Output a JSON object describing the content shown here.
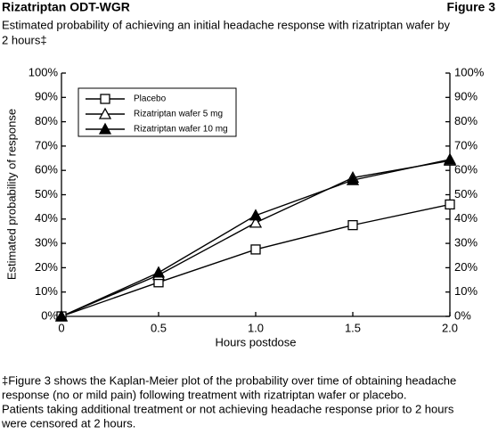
{
  "header": {
    "title": "Rizatriptan ODT-WGR",
    "figure": "Figure 3",
    "subtitle_lines": [
      "Estimated probability of achieving an initial headache response with rizatriptan wafer by",
      "2 hours‡"
    ]
  },
  "chart_data": {
    "type": "line",
    "xlabel": "Hours postdose",
    "ylabel": "Estimated probability of response",
    "x": [
      0,
      0.5,
      1.0,
      1.5,
      2.0
    ],
    "series": [
      {
        "name": "Placebo",
        "color": "#000000",
        "marker": "open-square",
        "values": [
          0,
          14,
          27.5,
          37.5,
          46
        ]
      },
      {
        "name": "Rizatriptan wafer 5 mg",
        "color": "#000000",
        "marker": "open-triangle",
        "values": [
          0,
          17,
          38.5,
          57,
          64
        ]
      },
      {
        "name": "Rizatriptan wafer 10 mg",
        "color": "#000000",
        "marker": "filled-triangle",
        "values": [
          0,
          18,
          41.5,
          56,
          64.5
        ]
      }
    ],
    "xlim": [
      0,
      2
    ],
    "xticks": [
      {
        "value": 0,
        "label": "0"
      },
      0.5,
      {
        "value": 1,
        "label": "1.0"
      },
      1.5,
      {
        "value": 2,
        "label": "2.0"
      }
    ],
    "ylim": [
      0,
      100
    ],
    "yticks": [
      {
        "value": 0,
        "label": "0%"
      },
      {
        "value": 10,
        "label": "10%"
      },
      {
        "value": 20,
        "label": "20%"
      },
      {
        "value": 30,
        "label": "30%"
      },
      {
        "value": 40,
        "label": "40%"
      },
      {
        "value": 50,
        "label": "50%"
      },
      {
        "value": 60,
        "label": "60%"
      },
      {
        "value": 70,
        "label": "70%"
      },
      {
        "value": 80,
        "label": "80%"
      },
      {
        "value": 90,
        "label": "90%"
      },
      {
        "value": 100,
        "label": "100%"
      }
    ],
    "y2lim": [
      0,
      100
    ],
    "y2ticks": [
      {
        "value": 0,
        "label": "0%"
      },
      {
        "value": 10,
        "label": "10%"
      },
      {
        "value": 20,
        "label": "20%"
      },
      {
        "value": 30,
        "label": "30%"
      },
      {
        "value": 40,
        "label": "40%"
      },
      {
        "value": 50,
        "label": "50%"
      },
      {
        "value": 60,
        "label": "60%"
      },
      {
        "value": 70,
        "label": "70%"
      },
      {
        "value": 80,
        "label": "80%"
      },
      {
        "value": 90,
        "label": "90%"
      },
      {
        "value": 100,
        "label": "100%"
      }
    ],
    "grid": false,
    "legend": "upper-left"
  },
  "footnote_lines": [
    "‡Figure 3 shows the Kaplan-Meier plot of the probability over time of obtaining headache",
    "response (no or mild pain) following treatment with rizatriptan wafer or placebo.",
    "Patients taking additional treatment or not achieving headache response prior to 2 hours",
    "were censored at 2 hours."
  ]
}
